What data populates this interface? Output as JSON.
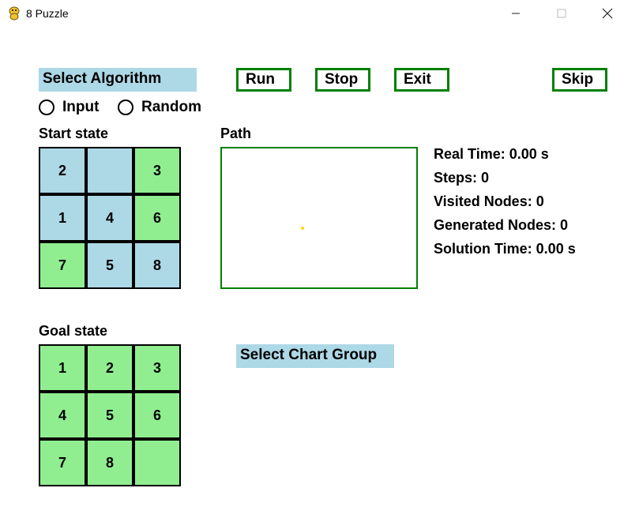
{
  "window": {
    "title": "8 Puzzle"
  },
  "controls": {
    "select_algorithm": "Select Algorithm",
    "run": "Run",
    "stop": "Stop",
    "exit": "Exit",
    "skip": "Skip",
    "radio_input": "Input",
    "radio_random": "Random",
    "select_chart_group": "Select Chart Group"
  },
  "labels": {
    "start_state": "Start state",
    "goal_state": "Goal state",
    "path": "Path"
  },
  "start_state": [
    "2",
    "",
    "3",
    "1",
    "4",
    "6",
    "7",
    "5",
    "8"
  ],
  "goal_state": [
    "1",
    "2",
    "3",
    "4",
    "5",
    "6",
    "7",
    "8",
    ""
  ],
  "stats": {
    "real_time": "Real Time: 0.00 s",
    "steps": "Steps: 0",
    "visited_nodes": "Visited Nodes: 0",
    "generated_nodes": "Generated Nodes: 0",
    "solution_time": "Solution Time: 0.00 s"
  },
  "colors": {
    "tile_blue": "#add8e6",
    "tile_green": "#90ee90",
    "button_border": "#008000"
  }
}
